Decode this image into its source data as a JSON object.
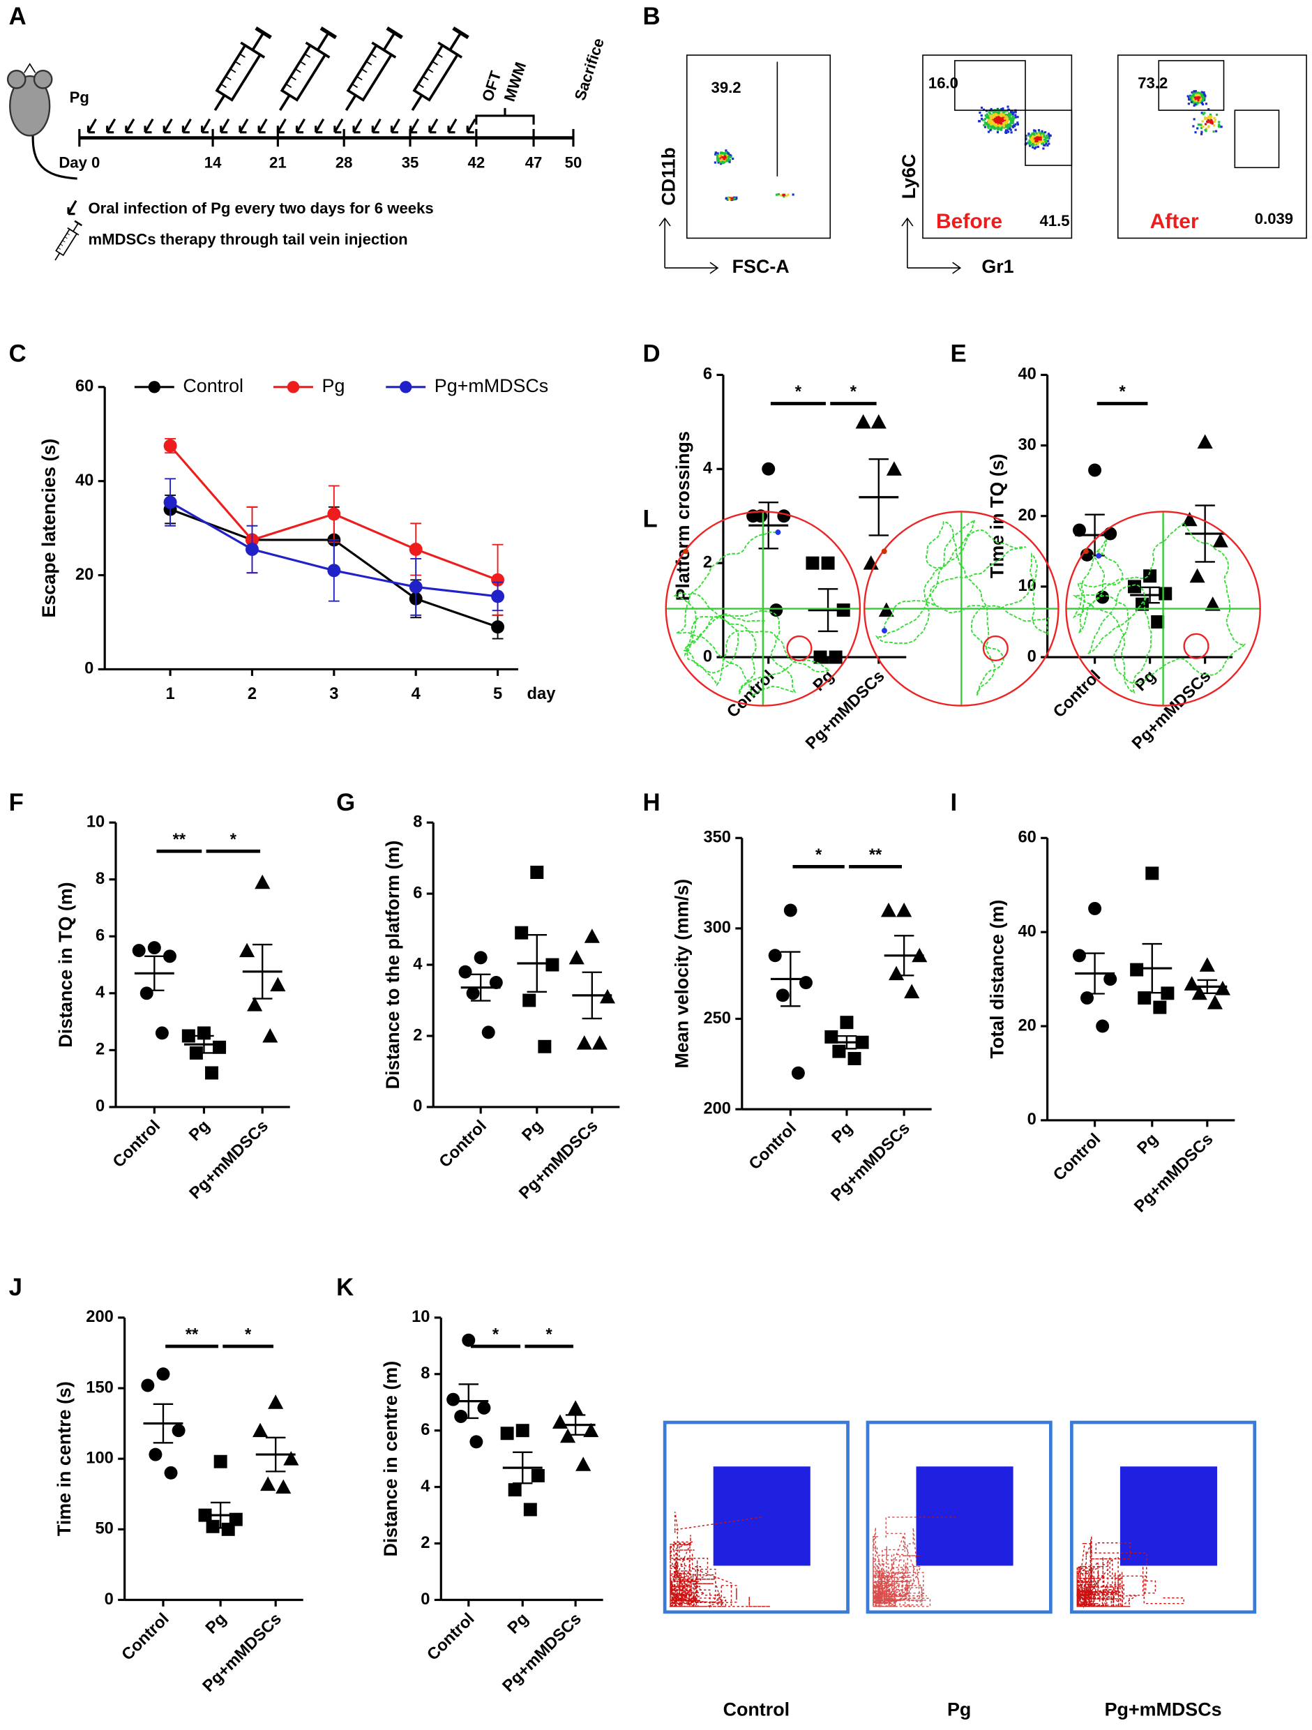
{
  "panel_a": {
    "label": "A",
    "infection": "Pg",
    "days": [
      "Day 0",
      "14",
      "21",
      "28",
      "35",
      "42",
      "47",
      "50"
    ],
    "tests": [
      "OFT",
      "MWM"
    ],
    "endpoint": "Sacrifice",
    "legend": [
      "Oral infection of Pg every two days for 6 weeks",
      "mMDSCs therapy through tail vein injection"
    ]
  },
  "panel_b": {
    "label": "B",
    "plots": [
      {
        "y_label": "CD11b",
        "x_label": "FSC-A",
        "gates": [
          "39.2"
        ]
      },
      {
        "y_label": "Ly6C",
        "x_label": "Gr1",
        "gates": [
          "16.0",
          "41.5"
        ],
        "condition": "Before"
      },
      {
        "gates": [
          "73.2",
          "0.039"
        ],
        "condition": "After"
      }
    ]
  },
  "chart_data": [
    {
      "panel": "C",
      "type": "line",
      "x_label": "day",
      "y_label": "Escape latencies (s)",
      "x": [
        1,
        2,
        3,
        4,
        5
      ],
      "xlim": [
        0.2,
        5.25
      ],
      "xticks": [
        1,
        2,
        3,
        4,
        5
      ],
      "ylim": [
        0,
        60
      ],
      "yticks": [
        0,
        20,
        40,
        60
      ],
      "series": [
        {
          "name": "Control",
          "color": "#000000",
          "values": [
            34,
            27.5,
            27.5,
            15,
            9
          ],
          "errors": [
            3,
            7,
            7,
            4,
            2.5
          ]
        },
        {
          "name": "Pg",
          "color": "#ee1c1c",
          "values": [
            47.5,
            27.5,
            33,
            25.5,
            19
          ],
          "errors": [
            1.5,
            7,
            6,
            5.5,
            7.5
          ]
        },
        {
          "name": "Pg+mMDSCs",
          "color": "#2121c8",
          "values": [
            35.5,
            25.5,
            21,
            17.5,
            15.5
          ],
          "errors": [
            5,
            5,
            6.5,
            6,
            3
          ]
        }
      ]
    },
    {
      "panel": "D",
      "type": "dot",
      "y_label": "Platform crossings",
      "categories": [
        "Control",
        "Pg",
        "Pg+mMDSCs"
      ],
      "markers": [
        "circle",
        "square",
        "triangle"
      ],
      "color": "#000000",
      "points": [
        [
          4,
          3,
          3,
          3,
          1
        ],
        [
          2,
          2,
          1,
          0,
          0
        ],
        [
          5,
          5,
          4,
          2,
          1
        ]
      ],
      "means": [
        2.8,
        1,
        3.4
      ],
      "sems": [
        0.49,
        0.45,
        0.81
      ],
      "ylim": [
        0,
        6
      ],
      "yticks": [
        0,
        2,
        4,
        6
      ],
      "significance": [
        {
          "label": "*",
          "between": [
            "Control",
            "Pg"
          ]
        },
        {
          "label": "*",
          "between": [
            "Pg",
            "Pg+mMDSCs"
          ]
        }
      ]
    },
    {
      "panel": "E",
      "type": "dot",
      "y_label": "Time in TQ (s)",
      "categories": [
        "Control",
        "Pg",
        "Pg+mMDSCs"
      ],
      "markers": [
        "circle",
        "square",
        "triangle"
      ],
      "color": "#000000",
      "points": [
        [
          26.5,
          18,
          17.5,
          14.5,
          8.5
        ],
        [
          11.5,
          10,
          9,
          7.5,
          5
        ],
        [
          30.5,
          19.5,
          16.5,
          11.5,
          7.5
        ]
      ],
      "means": [
        17.3,
        8.8,
        17.5
      ],
      "sems": [
        2.9,
        1.1,
        4
      ],
      "ylim": [
        0,
        40
      ],
      "yticks": [
        0,
        10,
        20,
        30,
        40
      ],
      "significance": [
        {
          "label": "*",
          "between": [
            "Control",
            "Pg"
          ]
        }
      ]
    },
    {
      "panel": "F",
      "type": "dot",
      "y_label": "Distance in TQ (m)",
      "categories": [
        "Control",
        "Pg",
        "Pg+mMDSCs"
      ],
      "markers": [
        "circle",
        "square",
        "triangle"
      ],
      "color": "#000000",
      "points": [
        [
          5.6,
          5.5,
          5.3,
          4,
          2.6
        ],
        [
          2.6,
          2.5,
          2.1,
          1.9,
          1.2
        ],
        [
          7.9,
          5.5,
          4.3,
          3.6,
          2.5
        ]
      ],
      "means": [
        4.7,
        2.2,
        4.76
      ],
      "sems": [
        0.6,
        0.3,
        0.95
      ],
      "ylim": [
        0,
        10
      ],
      "yticks": [
        0,
        2,
        4,
        6,
        8,
        10
      ],
      "significance": [
        {
          "label": "**",
          "between": [
            "Control",
            "Pg"
          ]
        },
        {
          "label": "*",
          "between": [
            "Pg",
            "Pg+mMDSCs"
          ]
        }
      ]
    },
    {
      "panel": "G",
      "type": "dot",
      "y_label": "Distance to the platform (m)",
      "categories": [
        "Control",
        "Pg",
        "Pg+mMDSCs"
      ],
      "markers": [
        "circle",
        "square",
        "triangle"
      ],
      "color": "#000000",
      "points": [
        [
          4.2,
          3.8,
          3.5,
          3.2,
          2.1
        ],
        [
          6.6,
          4.9,
          4,
          3,
          1.7
        ],
        [
          4.8,
          4.2,
          3.1,
          1.8,
          1.8
        ]
      ],
      "means": [
        3.36,
        4.04,
        3.14
      ],
      "sems": [
        0.37,
        0.8,
        0.65
      ],
      "ylim": [
        0,
        8
      ],
      "yticks": [
        0,
        2,
        4,
        6,
        8
      ],
      "significance": []
    },
    {
      "panel": "H",
      "type": "dot",
      "y_label": "Mean velocity (mm/s)",
      "categories": [
        "Control",
        "Pg",
        "Pg+mMDSCs"
      ],
      "markers": [
        "circle",
        "square",
        "triangle"
      ],
      "color": "#000000",
      "points": [
        [
          310,
          285,
          270,
          263,
          220
        ],
        [
          248,
          240,
          237,
          232,
          228
        ],
        [
          310,
          310,
          285,
          275,
          265
        ]
      ],
      "means": [
        272,
        237,
        285
      ],
      "sems": [
        15,
        3.5,
        11
      ],
      "ylim": [
        200,
        350
      ],
      "yticks": [
        200,
        250,
        300,
        350
      ],
      "significance": [
        {
          "label": "*",
          "between": [
            "Control",
            "Pg"
          ]
        },
        {
          "label": "**",
          "between": [
            "Pg",
            "Pg+mMDSCs"
          ]
        }
      ]
    },
    {
      "panel": "I",
      "type": "dot",
      "y_label": "Total distance (m)",
      "categories": [
        "Control",
        "Pg",
        "Pg+mMDSCs"
      ],
      "markers": [
        "circle",
        "square",
        "triangle"
      ],
      "color": "#000000",
      "points": [
        [
          45,
          35,
          30,
          26,
          20
        ],
        [
          52.5,
          32,
          27,
          26,
          24
        ],
        [
          33,
          29,
          28,
          27,
          25
        ]
      ],
      "means": [
        31.2,
        32.3,
        28.4
      ],
      "sems": [
        4.3,
        5.2,
        1.4
      ],
      "ylim": [
        0,
        60
      ],
      "yticks": [
        0,
        20,
        40,
        60
      ],
      "significance": []
    },
    {
      "panel": "J",
      "type": "dot",
      "y_label": "Time in centre (s)",
      "categories": [
        "Control",
        "Pg",
        "Pg+mMDSCs"
      ],
      "markers": [
        "circle",
        "square",
        "triangle"
      ],
      "color": "#000000",
      "points": [
        [
          160,
          152,
          120,
          103,
          90
        ],
        [
          98,
          60,
          57,
          52,
          50
        ],
        [
          140,
          120,
          100,
          82,
          80
        ]
      ],
      "means": [
        125,
        60,
        103
      ],
      "sems": [
        13.7,
        9,
        12
      ],
      "ylim": [
        0,
        200
      ],
      "yticks": [
        0,
        50,
        100,
        150,
        200
      ],
      "significance": [
        {
          "label": "**",
          "between": [
            "Control",
            "Pg"
          ]
        },
        {
          "label": "*",
          "between": [
            "Pg",
            "Pg+mMDSCs"
          ]
        }
      ]
    },
    {
      "panel": "K",
      "type": "dot",
      "y_label": "Distance in centre (m)",
      "categories": [
        "Control",
        "Pg",
        "Pg+mMDSCs"
      ],
      "markers": [
        "circle",
        "square",
        "triangle"
      ],
      "color": "#000000",
      "points": [
        [
          9.2,
          7.1,
          6.8,
          6.5,
          5.6
        ],
        [
          6,
          5.9,
          4.4,
          3.9,
          3.2
        ],
        [
          6.8,
          6.3,
          6,
          5.8,
          4.8
        ]
      ],
      "means": [
        7.04,
        4.68,
        6.2
      ],
      "sems": [
        0.6,
        0.55,
        0.35
      ],
      "ylim": [
        0,
        10
      ],
      "yticks": [
        0,
        2,
        4,
        6,
        8,
        10
      ],
      "significance": [
        {
          "label": "*",
          "between": [
            "Control",
            "Pg"
          ]
        },
        {
          "label": "*",
          "between": [
            "Pg",
            "Pg+mMDSCs"
          ]
        }
      ]
    }
  ],
  "panel_l": {
    "label": "L",
    "groups": [
      "Control",
      "Pg",
      "Pg+mMDSCs"
    ]
  }
}
